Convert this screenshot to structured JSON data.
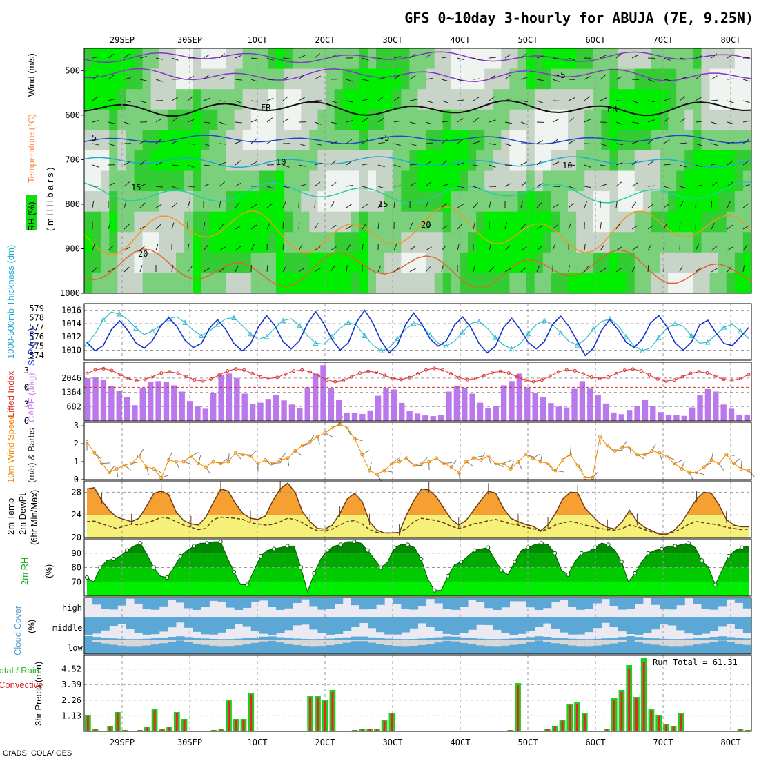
{
  "title": "GFS 0~10day 3-hourly for ABUJA (7E, 9.25N)",
  "footer": "GrADS: COLA/IGES",
  "run_total": "Run Total = 61.31",
  "chart_data": {
    "type": "meteogram",
    "dates": [
      "29SEP",
      "30SEP",
      "1OCT",
      "2OCT",
      "3OCT",
      "4OCT",
      "5OCT",
      "6OCT",
      "7OCT",
      "8OCT"
    ],
    "panels": {
      "upper_air": {
        "labels": [
          "RH (%)",
          "Temperature (°C)",
          "Wind (m/s)",
          "( m i l l i b a r s )"
        ],
        "ylim": [
          1000,
          450
        ],
        "yticks": [
          "500",
          "600",
          "700",
          "800",
          "900",
          "1000"
        ],
        "contour_labels": [
          "-5",
          "FR",
          "FR",
          "5",
          "-5",
          "10",
          "10",
          "15",
          "15",
          "20",
          "20"
        ]
      },
      "thickness_slp": {
        "labels": [
          "1000-500mb Thickness (dm)",
          "SLP (mb)"
        ],
        "thickness_ticks": [
          "579",
          "578",
          "577",
          "576",
          "575",
          "574"
        ],
        "slp_ticks": [
          "1016",
          "1014",
          "1012",
          "1010"
        ],
        "thickness": [
          575.2,
          576.3,
          577.8,
          578.6,
          578.4,
          577.8,
          576.9,
          576.2,
          576.6,
          577.2,
          577.9,
          578.1,
          577.5,
          576.7,
          576.1,
          576.6,
          577.3,
          577.9,
          578.0,
          577.2,
          576.3,
          575.7,
          576.0,
          576.9,
          577.7,
          577.9,
          577.2,
          576.1,
          575.3,
          575.2,
          576.0,
          576.9,
          577.5,
          577.2,
          576.1,
          575.1,
          574.5,
          574.8,
          575.8,
          576.8,
          577.4,
          577.2,
          576.2,
          575.3,
          575.0,
          575.5,
          576.5,
          577.4,
          577.6,
          576.9,
          575.9,
          575.1,
          574.7,
          575.2,
          576.3,
          577.3,
          577.7,
          577.3,
          576.4,
          575.5,
          575.1,
          575.7,
          576.8,
          577.6,
          577.9,
          577.2,
          576.0,
          575.0,
          574.5,
          574.8,
          575.9,
          576.9,
          577.4,
          577.1,
          576.1,
          575.3,
          575.4,
          576.2,
          577.0,
          577.3,
          576.6,
          575.8
        ],
        "slp": [
          1011.2,
          1009.9,
          1010.7,
          1013.1,
          1014.4,
          1013.0,
          1011.1,
          1010.3,
          1011.4,
          1013.6,
          1014.9,
          1013.6,
          1011.5,
          1010.4,
          1011.0,
          1013.3,
          1014.6,
          1013.1,
          1011.0,
          1009.9,
          1010.9,
          1013.5,
          1015.2,
          1013.7,
          1011.3,
          1010.2,
          1011.4,
          1014.0,
          1015.8,
          1014.0,
          1011.6,
          1010.0,
          1011.1,
          1014.2,
          1016.0,
          1014.1,
          1011.4,
          1009.6,
          1010.8,
          1013.8,
          1015.6,
          1013.9,
          1011.7,
          1010.6,
          1011.4,
          1013.8,
          1015.0,
          1013.4,
          1011.0,
          1009.6,
          1010.6,
          1013.4,
          1014.8,
          1013.2,
          1011.2,
          1010.2,
          1011.3,
          1013.9,
          1015.1,
          1013.6,
          1011.4,
          1009.2,
          1010.3,
          1013.0,
          1014.6,
          1013.1,
          1011.2,
          1010.4,
          1011.7,
          1014.1,
          1015.2,
          1013.5,
          1011.1,
          1010.0,
          1011.2,
          1013.8,
          1014.5,
          1012.6,
          1011.0,
          1010.7,
          1012.0,
          1013.4
        ]
      },
      "instability": {
        "labels": [
          "Lifted Index",
          "CAPE (J/kg)"
        ],
        "li_ticks": [
          "-3",
          "0",
          "3",
          "6"
        ],
        "cape_ticks": [
          "2046",
          "1364",
          "682"
        ],
        "cape": [
          2040,
          2080,
          1980,
          1650,
          1450,
          1150,
          750,
          1550,
          1850,
          1900,
          1850,
          1700,
          1400,
          950,
          690,
          580,
          1350,
          2180,
          2260,
          2050,
          1300,
          800,
          870,
          1050,
          1230,
          980,
          780,
          600,
          1600,
          2260,
          2660,
          1550,
          1000,
          400,
          380,
          330,
          500,
          1200,
          1550,
          1500,
          860,
          480,
          350,
          260,
          230,
          280,
          1400,
          1650,
          1560,
          1300,
          870,
          600,
          720,
          1700,
          1900,
          2260,
          1600,
          1350,
          1140,
          850,
          680,
          640,
          1530,
          1900,
          1540,
          1250,
          830,
          400,
          320,
          520,
          700,
          1000,
          700,
          420,
          300,
          280,
          240,
          640,
          1250,
          1520,
          1400,
          780,
          580,
          300,
          300
        ]
      },
      "wind10m": {
        "labels": [
          "10m Wind Speed",
          "(m/s) & Barbs"
        ],
        "ylim": [
          0,
          3.2
        ],
        "yticks": [
          "0",
          "1",
          "2",
          "3"
        ],
        "speed": [
          2.1,
          1.5,
          0.9,
          0.4,
          0.6,
          0.8,
          0.9,
          1.3,
          0.7,
          0.6,
          0.1,
          1.1,
          1.0,
          1.0,
          1.3,
          0.9,
          0.7,
          1.0,
          0.9,
          1.0,
          1.5,
          1.4,
          1.3,
          0.9,
          1.1,
          0.9,
          1.1,
          1.2,
          1.6,
          1.9,
          2.1,
          2.4,
          2.6,
          2.9,
          3.1,
          2.9,
          2.3,
          1.4,
          0.5,
          0.3,
          0.5,
          0.9,
          1.0,
          1.2,
          0.8,
          0.9,
          1.0,
          1.2,
          0.9,
          0.7,
          0.4,
          1.0,
          1.2,
          1.1,
          1.3,
          0.9,
          0.9,
          0.6,
          1.0,
          1.4,
          1.2,
          1.0,
          0.9,
          0.5,
          1.1,
          1.4,
          0.8,
          0.1,
          0.1,
          2.4,
          1.9,
          1.6,
          1.8,
          1.8,
          1.4,
          1.4,
          1.6,
          1.5,
          1.3,
          0.9,
          0.6,
          0.4,
          0.4,
          0.7,
          1.1,
          0.9,
          1.4,
          0.9,
          0.6,
          0.5
        ]
      },
      "temperature": {
        "labels": [
          "2m Temp",
          "2m DewPt",
          "(6hr Min/Max)"
        ],
        "ylim": [
          20,
          30
        ],
        "yticks": [
          "20",
          "24",
          "28"
        ],
        "temp": [
          28.6,
          28.8,
          26.5,
          24.8,
          23.6,
          23.2,
          22.8,
          23.4,
          25.5,
          27.8,
          28.2,
          27.6,
          24.5,
          23.0,
          22.4,
          22.2,
          23.6,
          26.2,
          28.6,
          28.2,
          26.0,
          24.2,
          23.4,
          23.2,
          23.8,
          26.5,
          28.6,
          29.6,
          28.0,
          24.5,
          22.8,
          21.6,
          21.5,
          22.2,
          24.2,
          26.8,
          27.8,
          26.4,
          22.8,
          21.3,
          20.8,
          20.8,
          20.9,
          24.0,
          26.6,
          28.6,
          28.4,
          27.2,
          25.2,
          23.2,
          22.2,
          23.0,
          24.8,
          26.6,
          28.2,
          27.8,
          25.2,
          23.4,
          22.8,
          22.3,
          22.0,
          21.2,
          22.2,
          24.2,
          26.8,
          28.0,
          27.9,
          25.2,
          23.8,
          22.5,
          21.8,
          21.5,
          22.8,
          24.8,
          22.8,
          21.8,
          21.2,
          20.6,
          20.6,
          21.3,
          22.6,
          24.8,
          26.8,
          28.0,
          27.8,
          25.8,
          23.2,
          22.2,
          21.9,
          21.9
        ],
        "dewpt": [
          22.8,
          22.9,
          22.4,
          22.0,
          21.6,
          22.0,
          22.4,
          22.2,
          22.6,
          23.0,
          23.6,
          23.4,
          22.8,
          22.2,
          21.8,
          21.4,
          21.6,
          23.2,
          23.6,
          23.5,
          23.4,
          23.2,
          22.6,
          22.4,
          22.2,
          22.3,
          22.8,
          23.4,
          23.2,
          22.6,
          21.8,
          21.2,
          21.2,
          21.5,
          22.2,
          22.8,
          23.0,
          22.4,
          21.4,
          20.9,
          20.8,
          20.8,
          20.9,
          21.6,
          22.8,
          23.4,
          23.2,
          23.0,
          22.6,
          22.0,
          21.6,
          21.9,
          22.4,
          22.6,
          23.0,
          23.2,
          22.8,
          22.4,
          22.2,
          21.8,
          21.6,
          21.1,
          21.5,
          22.2,
          22.6,
          22.8,
          22.6,
          22.2,
          21.9,
          21.6,
          21.4,
          21.3,
          21.6,
          22.2,
          21.9,
          21.4,
          21.0,
          20.6,
          20.6,
          21.0,
          21.6,
          22.4,
          22.8,
          22.6,
          22.4,
          22.2,
          21.8,
          21.6,
          21.4,
          21.5
        ]
      },
      "rh2m": {
        "labels": [
          "2m RH",
          "(%)"
        ],
        "ylim": [
          60,
          100
        ],
        "yticks": [
          "70",
          "80",
          "90"
        ],
        "rh": [
          73,
          70,
          80,
          85,
          86,
          88,
          92,
          95,
          97,
          89,
          80,
          74,
          73,
          80,
          88,
          92,
          95,
          97,
          97,
          98,
          98,
          87,
          77,
          68,
          68,
          78,
          88,
          92,
          93,
          94,
          95,
          95,
          80,
          63,
          76,
          86,
          92,
          95,
          96,
          98,
          98,
          97,
          92,
          86,
          80,
          84,
          94,
          96,
          96,
          94,
          86,
          72,
          64,
          64,
          74,
          82,
          84,
          88,
          92,
          93,
          94,
          86,
          78,
          75,
          84,
          92,
          94,
          96,
          97,
          96,
          90,
          78,
          75,
          84,
          90,
          91,
          94,
          97,
          96,
          92,
          84,
          70,
          76,
          84,
          90,
          92,
          93,
          95,
          95,
          96,
          97,
          94,
          85,
          80,
          68,
          78,
          88,
          92,
          94,
          95
        ]
      },
      "cloud": {
        "labels": [
          "Cloud Cover",
          "(%)"
        ],
        "rows": [
          "high",
          "middle",
          "low"
        ]
      },
      "precip": {
        "labels": [
          "Total / Rain",
          "Convective",
          "3hr Precip (mm)"
        ],
        "yticks": [
          "1.13",
          "2.26",
          "3.39",
          "4.52"
        ],
        "ymax": 5.5,
        "total": [
          1.2,
          0.15,
          0,
          0.4,
          1.4,
          0.1,
          0.05,
          0.1,
          0.3,
          1.6,
          0.2,
          0.3,
          1.4,
          0.9,
          0.05,
          0.05,
          0,
          0.1,
          0.2,
          2.3,
          0.9,
          0.9,
          2.8,
          0,
          0,
          0,
          0,
          0,
          0,
          0.05,
          2.6,
          2.6,
          2.3,
          3.0,
          0,
          0,
          0.1,
          0.2,
          0.2,
          0.2,
          0.8,
          1.35,
          0,
          0,
          0,
          0,
          0,
          0,
          0,
          0,
          0,
          0.05,
          0,
          0,
          0,
          0,
          0,
          0.1,
          3.5,
          0,
          0,
          0.05,
          0.2,
          0.4,
          0.8,
          2.0,
          2.1,
          1.3,
          0,
          0,
          0.2,
          2.4,
          3.0,
          4.8,
          2.5,
          5.3,
          1.6,
          1.2,
          0.5,
          0.4,
          1.3,
          0,
          0,
          0,
          0,
          0,
          0.05,
          0,
          0.2,
          0.1
        ]
      }
    }
  }
}
